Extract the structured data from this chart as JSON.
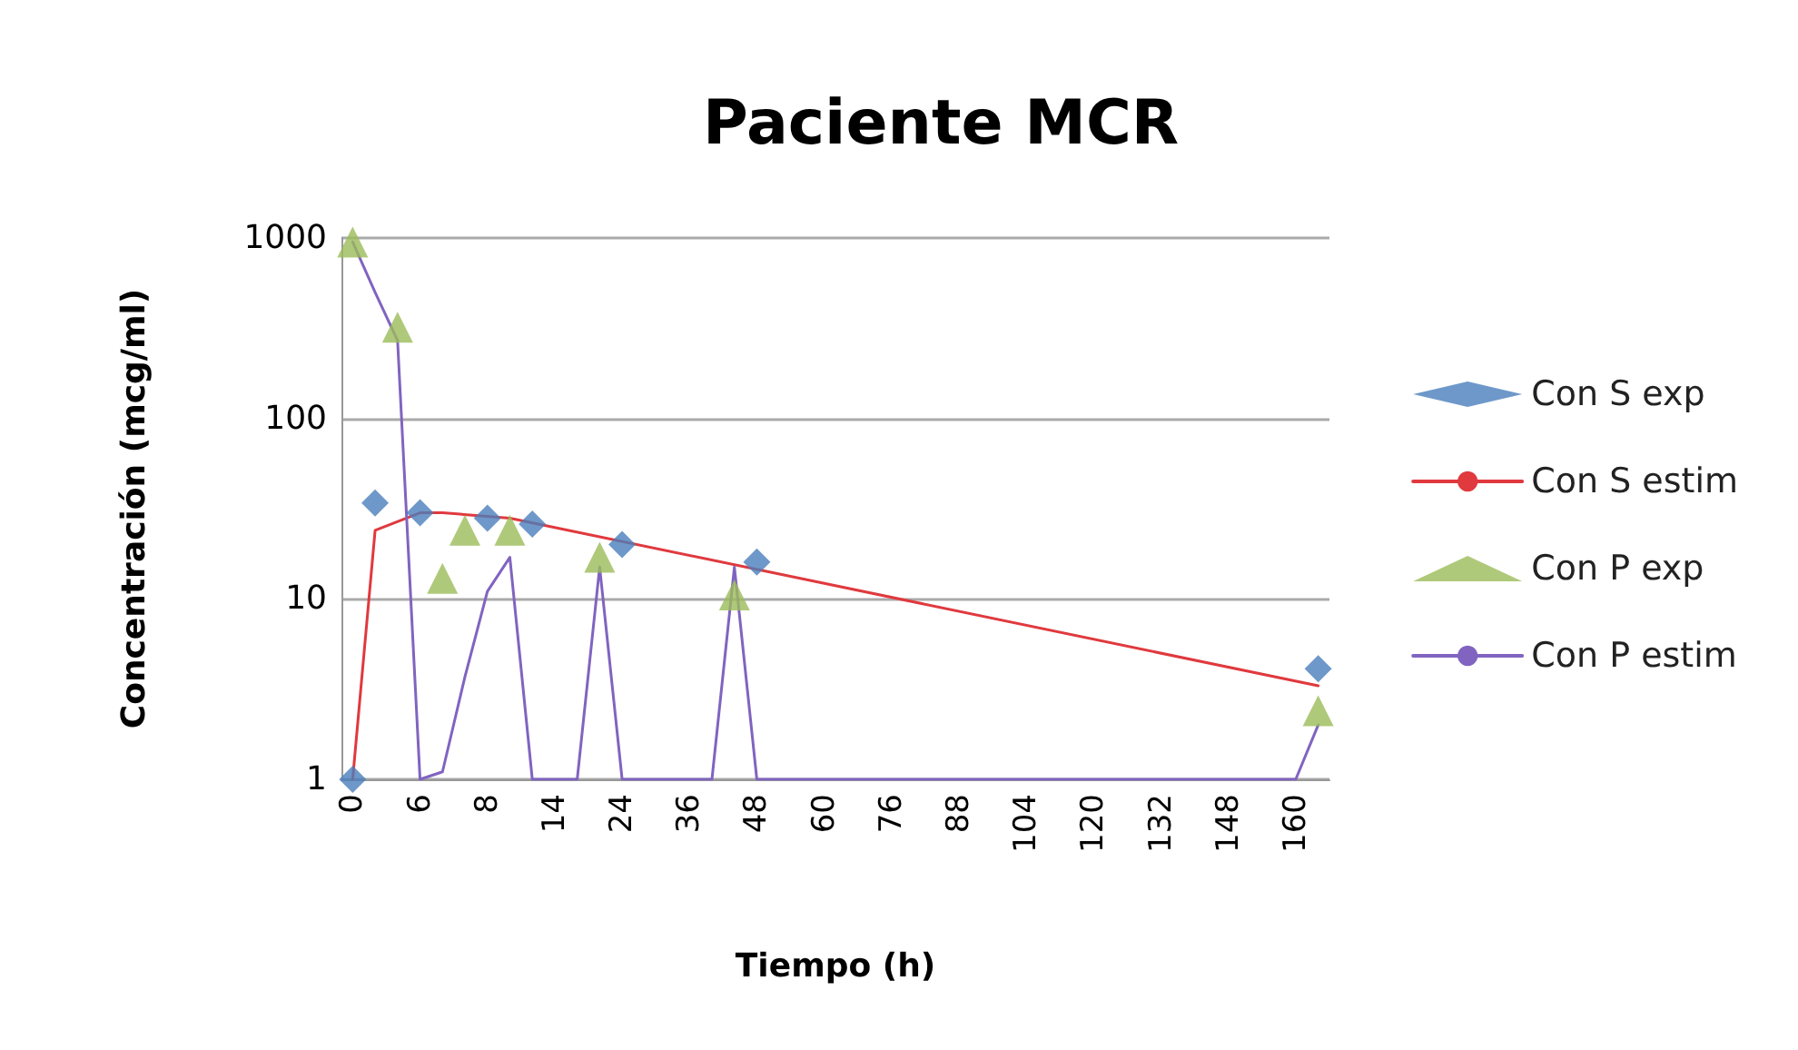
{
  "chart_data": {
    "type": "line",
    "title": "Paciente MCR",
    "xlabel": "Tiempo (h)",
    "ylabel": "Concentración (mcg/ml)",
    "categories": [
      "0",
      null,
      null,
      "6",
      null,
      null,
      "8",
      null,
      null,
      "14",
      null,
      null,
      "24",
      null,
      null,
      "36",
      null,
      null,
      "48",
      null,
      null,
      "60",
      null,
      null,
      "76",
      null,
      null,
      "88",
      null,
      null,
      "104",
      null,
      null,
      "120",
      null,
      null,
      "132",
      null,
      null,
      "148",
      null,
      null,
      "160",
      null
    ],
    "series": [
      {
        "name": "Con S exp",
        "type": "scatter",
        "marker": "diamond",
        "color": "#4a7ebb",
        "values": [
          1,
          34,
          null,
          30,
          null,
          null,
          28,
          null,
          26,
          null,
          null,
          null,
          20,
          null,
          null,
          null,
          null,
          null,
          16,
          null,
          null,
          null,
          null,
          null,
          null,
          null,
          null,
          null,
          null,
          null,
          null,
          null,
          null,
          null,
          null,
          null,
          null,
          null,
          null,
          null,
          null,
          null,
          null,
          4.1
        ]
      },
      {
        "name": "Con S estim",
        "marker": "none",
        "color": "#e0393e",
        "values": [
          1,
          24,
          null,
          30,
          30,
          null,
          null,
          28,
          null,
          null,
          null,
          null,
          null,
          null,
          null,
          null,
          null,
          null,
          null,
          null,
          null,
          null,
          null,
          null,
          null,
          null,
          null,
          null,
          null,
          null,
          null,
          null,
          null,
          null,
          null,
          null,
          null,
          null,
          null,
          null,
          null,
          null,
          null,
          3.3
        ]
      },
      {
        "name": "Con P exp",
        "type": "scatter",
        "marker": "triangle",
        "color": "#9bbb59",
        "values": [
          950,
          null,
          320,
          null,
          13,
          24,
          null,
          24,
          null,
          null,
          null,
          17,
          null,
          null,
          null,
          null,
          null,
          10.5,
          null,
          null,
          null,
          null,
          null,
          null,
          null,
          null,
          null,
          null,
          null,
          null,
          null,
          null,
          null,
          null,
          null,
          null,
          null,
          null,
          null,
          null,
          null,
          null,
          null,
          2.4
        ]
      },
      {
        "name": "Con P estim",
        "marker": "none",
        "color": "#8064c0",
        "values": [
          950,
          500,
          270,
          1,
          1.1,
          3.7,
          11,
          17,
          1,
          null,
          1,
          15,
          1,
          null,
          null,
          null,
          1,
          15,
          1,
          null,
          null,
          null,
          null,
          null,
          null,
          null,
          null,
          null,
          null,
          null,
          null,
          null,
          null,
          null,
          null,
          null,
          null,
          null,
          null,
          null,
          null,
          null,
          1,
          2
        ]
      }
    ],
    "log": "y",
    "ylim": [
      1,
      1000
    ],
    "yticks": [
      1,
      10,
      100,
      1000
    ],
    "grid": "y",
    "legend": "right"
  }
}
